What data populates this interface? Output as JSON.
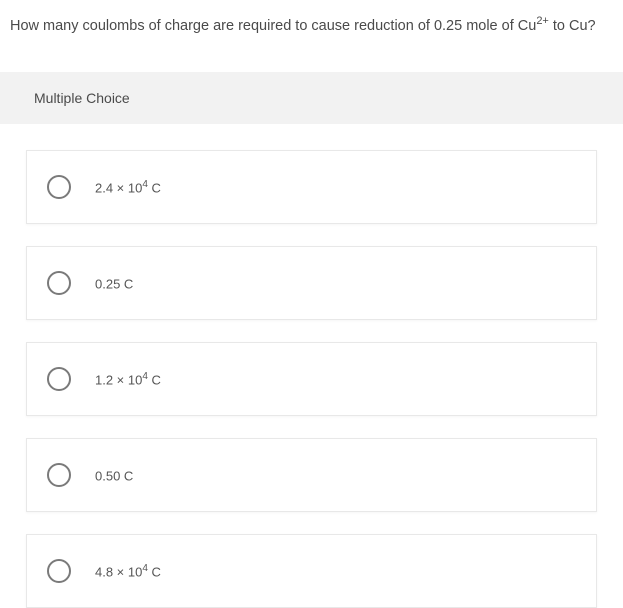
{
  "question": {
    "prefix": "How many coulombs of charge are required to cause reduction of 0.25 mole of Cu",
    "sup": "2+",
    "suffix": " to Cu?"
  },
  "section_label": "Multiple Choice",
  "options": [
    {
      "pre": "2.4 × 10",
      "sup": "4",
      "post": " C"
    },
    {
      "pre": "0.25 C",
      "sup": "",
      "post": ""
    },
    {
      "pre": "1.2 × 10",
      "sup": "4",
      "post": " C"
    },
    {
      "pre": "0.50 C",
      "sup": "",
      "post": ""
    },
    {
      "pre": "4.8 × 10",
      "sup": "4",
      "post": " C"
    }
  ],
  "colors": {
    "text": "#4a4a4a",
    "header_bg": "#f2f2f2",
    "card_border": "#e8e8e8",
    "radio_border": "#7a7a7a",
    "background": "#ffffff"
  }
}
